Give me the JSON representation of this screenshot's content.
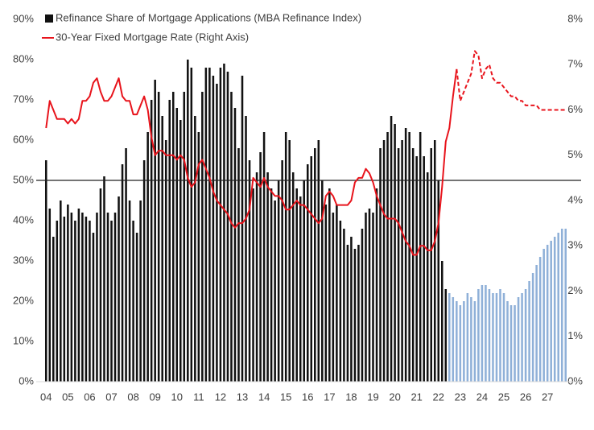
{
  "chart_data": {
    "type": "bar-line",
    "categories": [
      "04",
      null,
      null,
      null,
      null,
      null,
      "05",
      null,
      null,
      null,
      null,
      null,
      "06",
      null,
      null,
      null,
      null,
      null,
      "07",
      null,
      null,
      null,
      null,
      null,
      "08",
      null,
      null,
      null,
      null,
      null,
      "09",
      null,
      null,
      null,
      null,
      null,
      "10",
      null,
      null,
      null,
      null,
      null,
      "11",
      null,
      null,
      null,
      null,
      null,
      "12",
      null,
      null,
      null,
      null,
      null,
      "13",
      null,
      null,
      null,
      null,
      null,
      "14",
      null,
      null,
      null,
      null,
      null,
      "15",
      null,
      null,
      null,
      null,
      null,
      "16",
      null,
      null,
      null,
      null,
      null,
      "17",
      null,
      null,
      null,
      null,
      null,
      "18",
      null,
      null,
      null,
      null,
      null,
      "19",
      null,
      null,
      null,
      null,
      null,
      "20",
      null,
      null,
      null,
      null,
      null,
      "21",
      null,
      null,
      null,
      null,
      null,
      "22",
      null,
      null,
      null,
      null,
      null,
      "23",
      null,
      null,
      null,
      null,
      null,
      "24",
      null,
      null,
      null,
      null,
      null,
      "25",
      null,
      null,
      null,
      null,
      null,
      "26",
      null,
      null,
      null,
      null,
      null,
      "27",
      null,
      null,
      null,
      null,
      null
    ],
    "series": [
      {
        "name": "Refinance Share of Mortgage Applications (MBA Refinance Index)",
        "kind": "bar",
        "color": "#111111",
        "forecast_color": "#8fb0d8",
        "forecast_start": 111,
        "values": [
          55,
          43,
          36,
          40,
          45,
          41,
          44,
          42,
          40,
          43,
          42,
          41,
          40,
          37,
          42,
          48,
          51,
          42,
          40,
          42,
          46,
          54,
          58,
          45,
          40,
          37,
          45,
          55,
          62,
          70,
          75,
          72,
          66,
          60,
          70,
          72,
          68,
          65,
          72,
          80,
          78,
          66,
          62,
          72,
          78,
          78,
          76,
          74,
          78,
          79,
          77,
          72,
          68,
          58,
          76,
          66,
          55,
          48,
          52,
          57,
          62,
          52,
          48,
          45,
          50,
          55,
          62,
          60,
          52,
          48,
          46,
          50,
          54,
          56,
          58,
          60,
          50,
          44,
          48,
          42,
          44,
          40,
          38,
          34,
          36,
          33,
          34,
          38,
          42,
          43,
          42,
          48,
          58,
          60,
          62,
          66,
          64,
          58,
          60,
          63,
          62,
          58,
          56,
          62,
          56,
          52,
          58,
          60,
          50,
          30,
          23,
          22,
          21,
          20,
          19,
          20,
          22,
          21,
          20,
          23,
          24,
          24,
          23,
          22,
          22,
          23,
          22,
          20,
          19,
          19,
          21,
          22,
          23,
          25,
          27,
          29,
          31,
          33,
          34,
          35,
          36,
          37,
          38,
          38
        ]
      },
      {
        "name": "30-Year Fixed Mortgage Rate (Right Axis)",
        "kind": "line",
        "axis": "y2",
        "color": "#e8141c",
        "forecast_start": 113,
        "values": [
          5.6,
          6.2,
          6.0,
          5.8,
          5.8,
          5.8,
          5.7,
          5.8,
          5.7,
          5.8,
          6.2,
          6.2,
          6.3,
          6.6,
          6.7,
          6.4,
          6.2,
          6.2,
          6.3,
          6.5,
          6.7,
          6.3,
          6.2,
          6.2,
          5.9,
          5.9,
          6.1,
          6.3,
          6.0,
          5.4,
          5.0,
          5.1,
          5.1,
          5.0,
          5.0,
          5.0,
          4.9,
          5.0,
          4.9,
          4.5,
          4.3,
          4.4,
          4.8,
          4.9,
          4.7,
          4.5,
          4.2,
          4.0,
          3.9,
          3.8,
          3.7,
          3.5,
          3.4,
          3.5,
          3.5,
          3.6,
          3.8,
          4.5,
          4.4,
          4.3,
          4.5,
          4.3,
          4.2,
          4.1,
          4.1,
          4.0,
          3.8,
          3.8,
          3.9,
          4.0,
          3.9,
          3.9,
          3.8,
          3.7,
          3.6,
          3.5,
          3.6,
          4.1,
          4.2,
          4.1,
          3.9,
          3.9,
          3.9,
          3.9,
          4.0,
          4.4,
          4.5,
          4.5,
          4.7,
          4.6,
          4.4,
          4.1,
          3.9,
          3.7,
          3.6,
          3.6,
          3.6,
          3.5,
          3.3,
          3.1,
          3.0,
          2.8,
          2.8,
          3.0,
          3.0,
          2.9,
          2.9,
          3.1,
          3.5,
          4.3,
          5.3,
          5.6,
          6.3,
          6.9,
          6.2,
          6.4,
          6.6,
          6.8,
          7.3,
          7.2,
          6.7,
          6.9,
          7.0,
          6.7,
          6.6,
          6.6,
          6.5,
          6.4,
          6.3,
          6.3,
          6.2,
          6.2,
          6.1,
          6.1,
          6.1,
          6.1,
          6.0,
          6.0,
          6.0,
          6.0,
          6.0,
          6.0,
          6.0,
          6.0
        ]
      }
    ],
    "ylim": [
      0,
      90
    ],
    "yticks": [
      {
        "value": 0,
        "label": "0%"
      },
      {
        "value": 10,
        "label": "10%"
      },
      {
        "value": 20,
        "label": "20%"
      },
      {
        "value": 30,
        "label": "30%"
      },
      {
        "value": 40,
        "label": "40%"
      },
      {
        "value": 50,
        "label": "50%"
      },
      {
        "value": 60,
        "label": "60%"
      },
      {
        "value": 70,
        "label": "70%"
      },
      {
        "value": 80,
        "label": "80%"
      },
      {
        "value": 90,
        "label": "90%"
      }
    ],
    "y2lim": [
      0,
      8
    ],
    "y2ticks": [
      {
        "value": 0,
        "label": "0%"
      },
      {
        "value": 1,
        "label": "1%"
      },
      {
        "value": 2,
        "label": "2%"
      },
      {
        "value": 3,
        "label": "3%"
      },
      {
        "value": 4,
        "label": "4%"
      },
      {
        "value": 5,
        "label": "5%"
      },
      {
        "value": 6,
        "label": "6%"
      },
      {
        "value": 7,
        "label": "7%"
      },
      {
        "value": 8,
        "label": "8%"
      }
    ],
    "hline": 50,
    "legend": "top-left"
  }
}
